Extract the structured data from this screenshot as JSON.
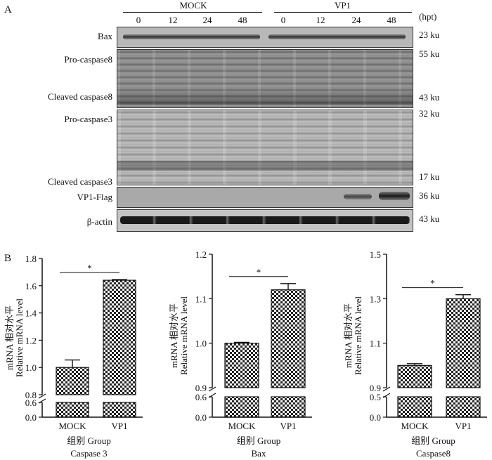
{
  "panel_a": {
    "label": "A",
    "groups": [
      {
        "name": "MOCK",
        "lanes": [
          "0",
          "12",
          "24",
          "48"
        ]
      },
      {
        "name": "VP1",
        "lanes": [
          "0",
          "12",
          "24",
          "48"
        ]
      }
    ],
    "time_unit": "(hpt)",
    "blots": [
      {
        "labels": [
          "Bax"
        ],
        "markers": [
          "23 ku"
        ]
      },
      {
        "labels": [
          "Pro-caspase8",
          "Cleaved caspase8"
        ],
        "markers": [
          "55 ku",
          "43 ku"
        ]
      },
      {
        "labels": [
          "Pro-caspase3",
          "Cleaved caspase3"
        ],
        "markers": [
          "32 ku",
          "17 ku"
        ]
      },
      {
        "labels": [
          "VP1-Flag"
        ],
        "markers": [
          "36 ku"
        ]
      },
      {
        "labels": [
          "β-actin"
        ],
        "markers": [
          "43 ku"
        ]
      }
    ]
  },
  "panel_b": {
    "label": "B"
  },
  "chart_data": [
    {
      "type": "bar",
      "title": "Caspase 3",
      "categories": [
        "MOCK",
        "VP1"
      ],
      "values": [
        1.0,
        1.64
      ],
      "errors": [
        0.055,
        0.005
      ],
      "xlabel": "组别 Group",
      "ylabel_cn": "mRNA 相对水平",
      "ylabel_en": "Relative mRNA level",
      "y_lower_ticks": [
        "0.0",
        "0.6"
      ],
      "y_upper_ticks": [
        "0.8",
        "1.0",
        "1.2",
        "1.4",
        "1.6",
        "1.8"
      ],
      "y_lower_range": [
        0,
        0.6
      ],
      "y_upper_range": [
        0.8,
        1.8
      ],
      "significance": "*"
    },
    {
      "type": "bar",
      "title": "Bax",
      "categories": [
        "MOCK",
        "VP1"
      ],
      "values": [
        1.0,
        1.12
      ],
      "errors": [
        0.002,
        0.014
      ],
      "xlabel": "组别 Group",
      "ylabel_cn": "mRNA 相对水平",
      "ylabel_en": "Relative mRNA level",
      "y_lower_ticks": [
        "0.0",
        "0.6"
      ],
      "y_upper_ticks": [
        "0.9",
        "1.0",
        "1.1",
        "1.2"
      ],
      "y_lower_range": [
        0,
        0.6
      ],
      "y_upper_range": [
        0.9,
        1.2
      ],
      "significance": "*"
    },
    {
      "type": "bar",
      "title": "Caspase8",
      "categories": [
        "MOCK",
        "VP1"
      ],
      "values": [
        1.0,
        1.3
      ],
      "errors": [
        0.008,
        0.018
      ],
      "xlabel": "组别 Group",
      "ylabel_cn": "mRNA 相对水平",
      "ylabel_en": "Relative mRNA level",
      "y_lower_ticks": [
        "0.0",
        "0.5"
      ],
      "y_upper_ticks": [
        "0.9",
        "1.1",
        "1.3",
        "1.5"
      ],
      "y_lower_range": [
        0,
        0.5
      ],
      "y_upper_range": [
        0.9,
        1.5
      ],
      "significance": "*"
    }
  ]
}
